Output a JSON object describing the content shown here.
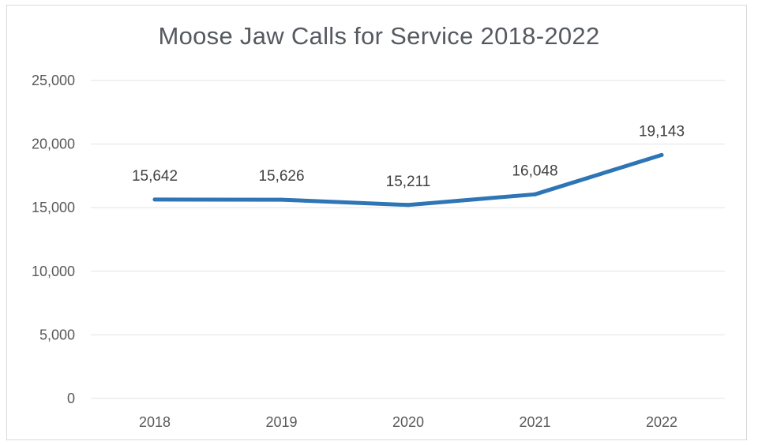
{
  "chart_data": {
    "type": "line",
    "title": "Moose Jaw Calls for Service 2018-2022",
    "xlabel": "",
    "ylabel": "",
    "categories": [
      "2018",
      "2019",
      "2020",
      "2021",
      "2022"
    ],
    "series": [
      {
        "values": [
          15642,
          15626,
          15211,
          16048,
          19143
        ],
        "data_labels": [
          "15,642",
          "15,626",
          "15,211",
          "16,048",
          "19,143"
        ],
        "color": "#2e75b6"
      }
    ],
    "ylim": [
      0,
      25000
    ],
    "y_ticks": [
      0,
      5000,
      10000,
      15000,
      20000,
      25000
    ],
    "y_tick_labels": [
      "0",
      "5,000",
      "10,000",
      "15,000",
      "20,000",
      "25,000"
    ],
    "grid": true,
    "legend": "none",
    "gridline_color": "#e3e3e3"
  }
}
